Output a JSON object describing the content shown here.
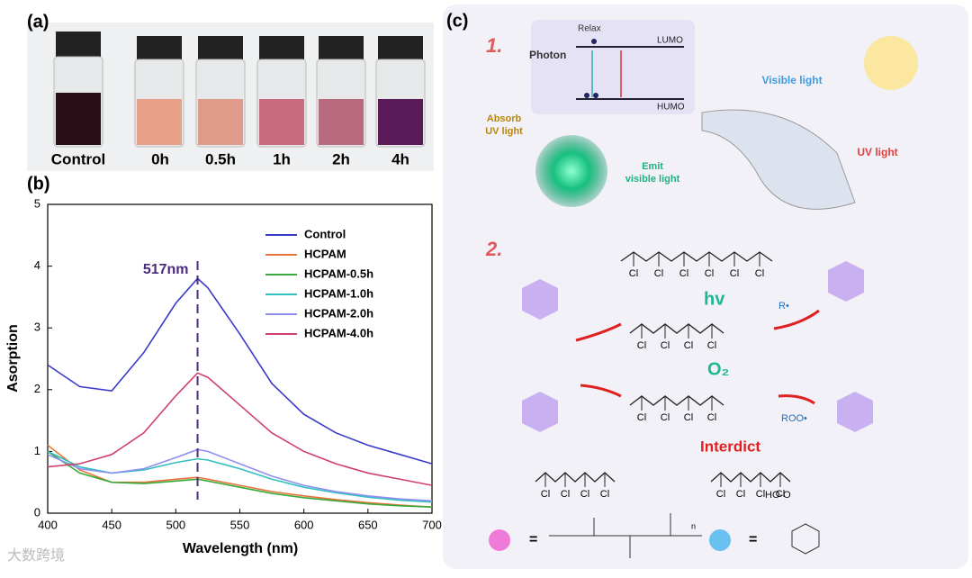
{
  "panel_a": {
    "label": "(a)",
    "vial_labels": [
      "Control",
      "0h",
      "0.5h",
      "1h",
      "2h",
      "4h"
    ]
  },
  "chart_data": {
    "type": "line",
    "panel_label": "(b)",
    "xlabel": "Wavelength (nm)",
    "ylabel": "Asorption",
    "x": [
      400,
      425,
      450,
      475,
      500,
      517,
      525,
      550,
      575,
      600,
      625,
      650,
      675,
      700
    ],
    "xlim": [
      400,
      700
    ],
    "xticks": [
      400,
      450,
      500,
      550,
      600,
      650,
      700
    ],
    "ylim": [
      0,
      5
    ],
    "yticks": [
      0,
      1,
      2,
      3,
      4,
      5
    ],
    "annotation": {
      "text": "517nm",
      "x": 517
    },
    "legend": "upper right",
    "series": [
      {
        "name": "Control",
        "color": "#3a3ac8",
        "values": [
          2.4,
          2.05,
          1.98,
          2.6,
          3.4,
          3.8,
          3.65,
          2.9,
          2.1,
          1.6,
          1.3,
          1.1,
          0.95,
          0.8
        ]
      },
      {
        "name": "HCPAM",
        "color": "#e8743b",
        "values": [
          1.1,
          0.7,
          0.5,
          0.5,
          0.55,
          0.58,
          0.55,
          0.45,
          0.35,
          0.28,
          0.22,
          0.17,
          0.13,
          0.1
        ]
      },
      {
        "name": "HCPAM-0.5h",
        "color": "#3aaa3a",
        "values": [
          1.0,
          0.65,
          0.5,
          0.48,
          0.52,
          0.55,
          0.52,
          0.42,
          0.32,
          0.25,
          0.2,
          0.15,
          0.12,
          0.1
        ]
      },
      {
        "name": "HCPAM-1.0h",
        "color": "#30c0c0",
        "values": [
          1.0,
          0.75,
          0.65,
          0.7,
          0.82,
          0.88,
          0.86,
          0.72,
          0.55,
          0.42,
          0.33,
          0.26,
          0.21,
          0.18
        ]
      },
      {
        "name": "HCPAM-2.0h",
        "color": "#8f8ff0",
        "values": [
          0.95,
          0.72,
          0.65,
          0.72,
          0.9,
          1.03,
          1.0,
          0.8,
          0.6,
          0.45,
          0.35,
          0.28,
          0.23,
          0.2
        ]
      },
      {
        "name": "HCPAM-4.0h",
        "color": "#d0406a",
        "values": [
          0.75,
          0.8,
          0.95,
          1.3,
          1.9,
          2.27,
          2.2,
          1.75,
          1.3,
          1.0,
          0.8,
          0.65,
          0.55,
          0.45
        ]
      }
    ]
  },
  "panel_c": {
    "label": "(c)",
    "step_1": "1.",
    "step_2": "2.",
    "photon": "Photon",
    "relax": "Relax",
    "lumo": "LUMO",
    "humo": "HUMO",
    "absorb": [
      "Absorb",
      "UV light"
    ],
    "emit": [
      "Emit",
      "visible light"
    ],
    "visible_light": "Visible light",
    "uv_light": "UV light",
    "hv": "hv",
    "o2": "O₂",
    "interdict": "Interdict",
    "r_radical": "R•",
    "roo_radical": "ROO•",
    "chains": [
      {
        "labels": [
          "Cl",
          "Cl",
          "Cl",
          "Cl",
          "Cl",
          "Cl"
        ]
      },
      {
        "labels": [
          "Cl",
          "Cl",
          "Cl",
          "Cl"
        ]
      },
      {
        "labels": [
          "Cl",
          "Cl",
          "Cl",
          "Cl"
        ]
      },
      {
        "labels": [
          "Cl",
          "Cl",
          "Cl",
          "Cl"
        ]
      },
      {
        "labels": [
          "Cl",
          "Cl",
          "Cl",
          "Cl"
        ]
      }
    ],
    "hooh": "HO-O",
    "legend_n": "n"
  },
  "watermark": "大数跨境"
}
